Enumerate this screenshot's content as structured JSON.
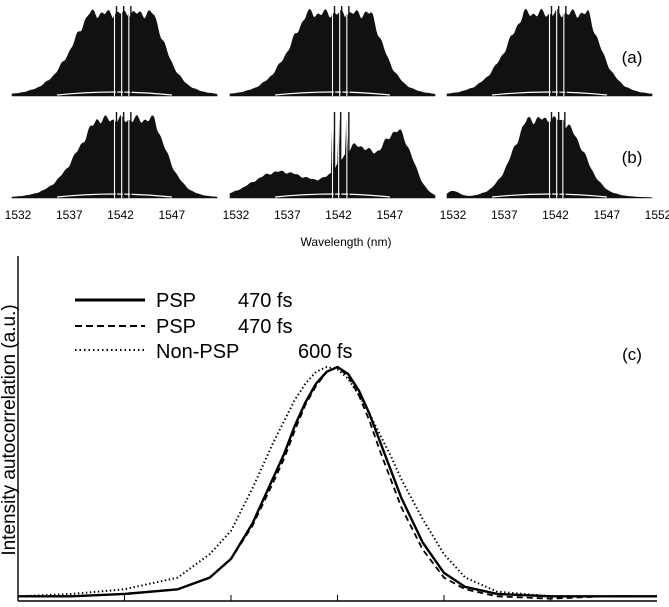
{
  "chart_data": [
    {
      "type": "area",
      "panel": "(a)",
      "subplots": 3,
      "x_ticks": [
        "1532",
        "1537",
        "1542",
        "1547",
        "1552"
      ]
    },
    {
      "type": "area",
      "panel": "(b)",
      "subplots": 3,
      "xlabel": "Wavelength (nm)",
      "xlim": [
        1532,
        1552
      ],
      "tick_label_sets": [
        [
          "1532",
          "1537",
          "1542",
          "1547"
        ],
        [
          "1532",
          "1537",
          "1542",
          "1547"
        ],
        [
          "1532",
          "1537",
          "1542",
          "1547",
          "1552"
        ]
      ]
    },
    {
      "type": "line",
      "panel": "(c)",
      "ylabel": "Intensity autocorrelation (a.u.)",
      "series": [
        {
          "name": "PSP 470 fs",
          "style": "solid",
          "legend_name": "PSP",
          "legend_value": "470 fs",
          "x": [
            -3,
            -2.5,
            -2,
            -1.5,
            -1.2,
            -1,
            -0.8,
            -0.6,
            -0.5,
            -0.4,
            -0.3,
            -0.2,
            -0.1,
            0,
            0.1,
            0.2,
            0.3,
            0.4,
            0.5,
            0.6,
            0.8,
            1,
            1.2,
            1.5,
            2,
            2.5,
            3
          ],
          "y": [
            0.02,
            0.02,
            0.03,
            0.05,
            0.1,
            0.18,
            0.33,
            0.53,
            0.63,
            0.75,
            0.85,
            0.93,
            0.98,
            1.0,
            0.97,
            0.9,
            0.8,
            0.68,
            0.56,
            0.44,
            0.25,
            0.12,
            0.06,
            0.03,
            0.02,
            0.02,
            0.02
          ]
        },
        {
          "name": "PSP 470 fs",
          "style": "dashed",
          "legend_name": "PSP",
          "legend_value": "470 fs",
          "x": [
            -3,
            -2.5,
            -2,
            -1.5,
            -1.2,
            -1,
            -0.8,
            -0.6,
            -0.5,
            -0.4,
            -0.3,
            -0.2,
            -0.1,
            0,
            0.1,
            0.2,
            0.3,
            0.4,
            0.5,
            0.6,
            0.8,
            1,
            1.2,
            1.5,
            2,
            2.5,
            3
          ],
          "y": [
            0.02,
            0.02,
            0.03,
            0.05,
            0.1,
            0.18,
            0.32,
            0.51,
            0.61,
            0.73,
            0.84,
            0.92,
            0.98,
            1.0,
            0.96,
            0.88,
            0.77,
            0.64,
            0.52,
            0.4,
            0.22,
            0.1,
            0.05,
            0.02,
            0.01,
            0.02,
            0.02
          ]
        },
        {
          "name": "Non-PSP 600 fs",
          "style": "dotted",
          "legend_name": "Non-PSP",
          "legend_value": "600 fs",
          "x": [
            -3,
            -2.5,
            -2,
            -1.5,
            -1.2,
            -1,
            -0.8,
            -0.6,
            -0.5,
            -0.4,
            -0.3,
            -0.2,
            -0.1,
            0,
            0.1,
            0.2,
            0.3,
            0.4,
            0.5,
            0.6,
            0.8,
            1,
            1.2,
            1.5,
            2,
            2.5,
            3
          ],
          "y": [
            0.02,
            0.03,
            0.05,
            0.1,
            0.2,
            0.3,
            0.48,
            0.68,
            0.77,
            0.86,
            0.93,
            0.98,
            1.0,
            0.99,
            0.95,
            0.88,
            0.8,
            0.71,
            0.62,
            0.52,
            0.35,
            0.2,
            0.1,
            0.04,
            0.02,
            0.02,
            0.02
          ]
        }
      ],
      "xlim": [
        -3,
        3
      ],
      "ylim": [
        0,
        1.1
      ],
      "annotation": "(c)"
    }
  ]
}
